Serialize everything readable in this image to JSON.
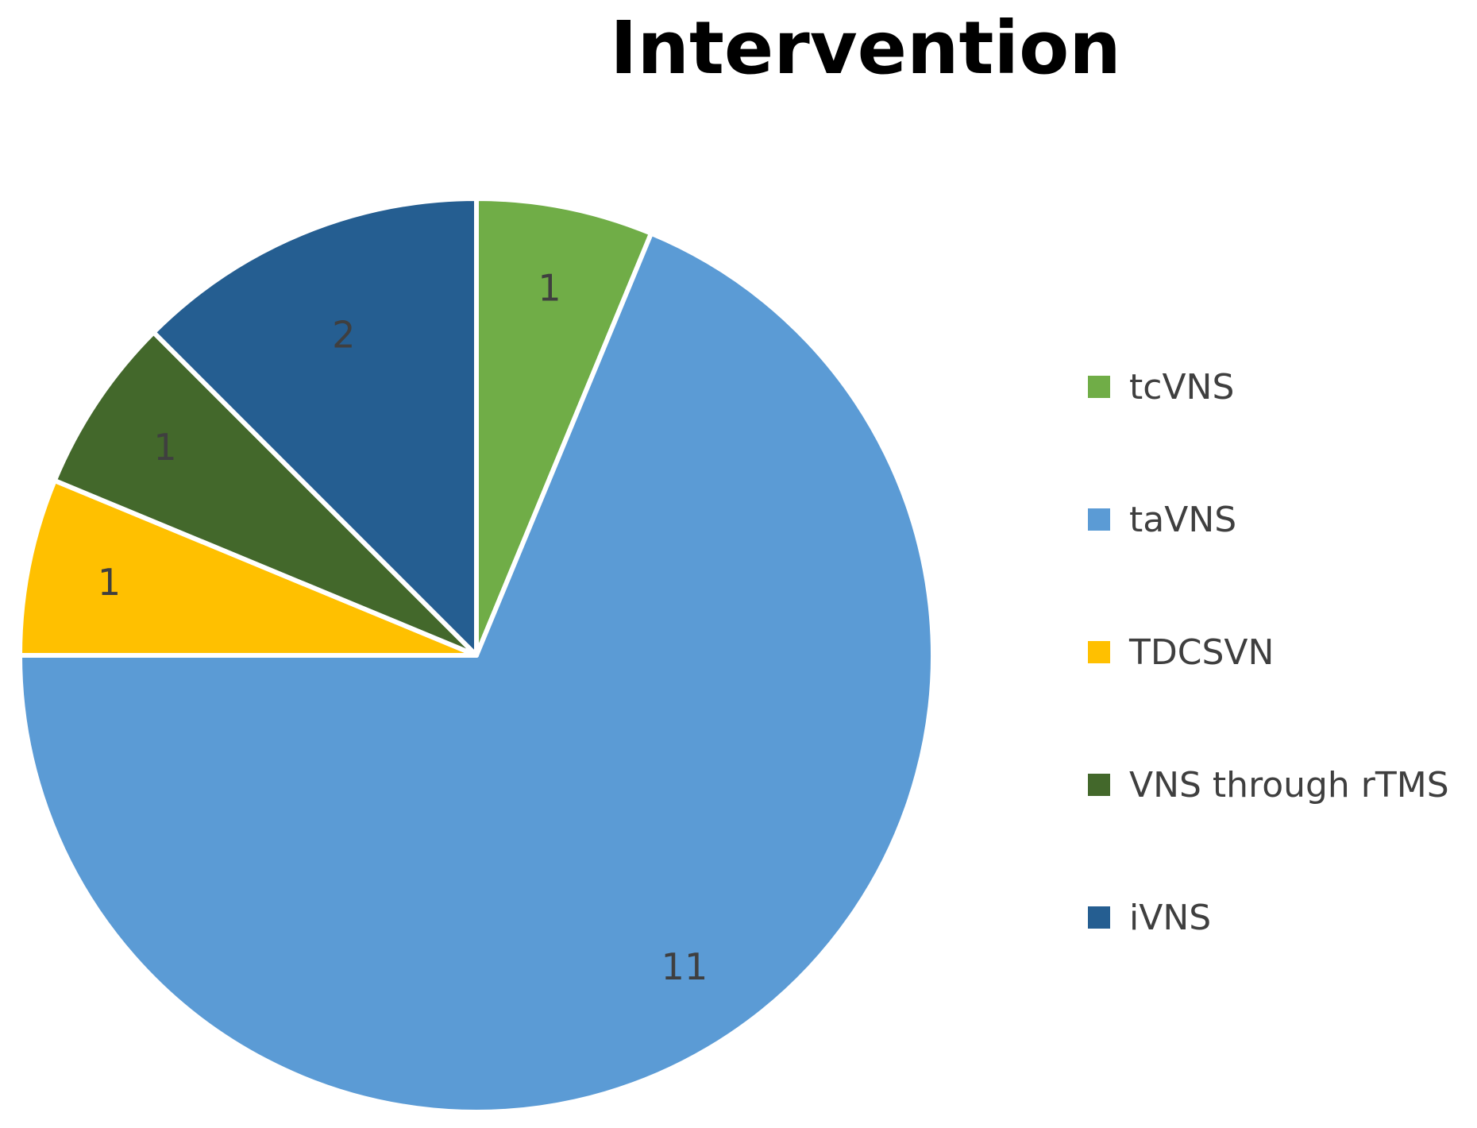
{
  "chart_data": {
    "type": "pie",
    "title": "Intervention",
    "categories": [
      "tcVNS",
      "taVNS",
      "TDCSVN",
      "VNS through rTMS",
      "iVNS"
    ],
    "values": [
      1,
      11,
      1,
      1,
      2
    ],
    "colors": [
      "#70AD47",
      "#5B9BD5",
      "#FFC000",
      "#43682B",
      "#255E91"
    ],
    "data_labels": [
      "1",
      "11",
      "1",
      "1",
      "2"
    ],
    "start_angle_deg": 0,
    "direction": "clockwise",
    "legend_position": "right",
    "slice_border_color": "#ffffff"
  }
}
